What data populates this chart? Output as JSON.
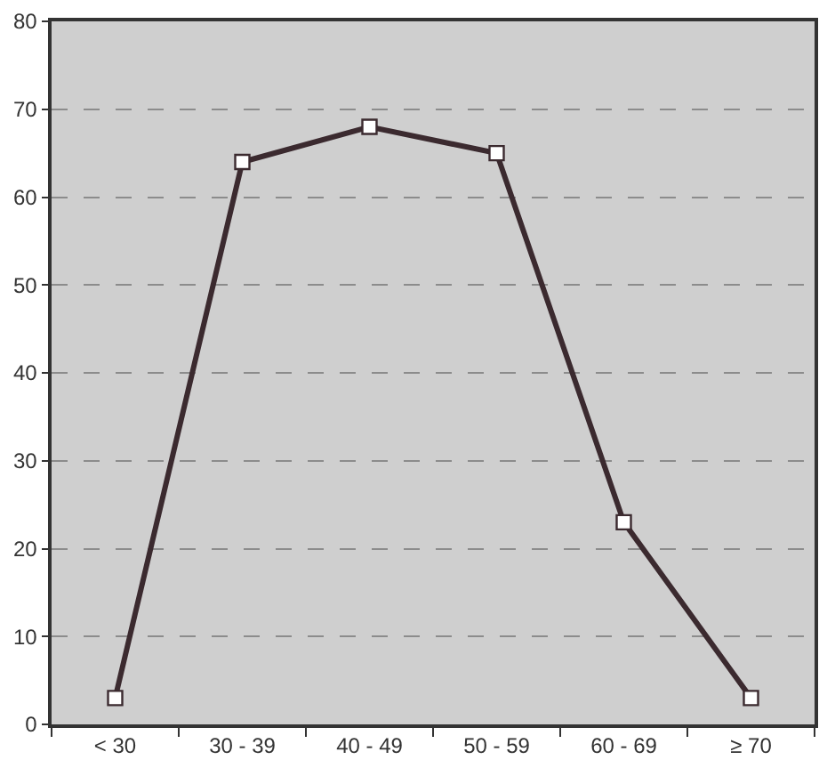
{
  "chart_data": {
    "type": "line",
    "categories": [
      "< 30",
      "30 - 39",
      "40 - 49",
      "50 - 59",
      "60 - 69",
      "≥ 70"
    ],
    "series": [
      {
        "color": "#3b2a2f",
        "values": [
          3,
          64,
          68,
          65,
          23,
          3
        ]
      }
    ],
    "ylim": [
      0,
      80
    ],
    "yticks": [
      0,
      10,
      20,
      30,
      40,
      50,
      60,
      70,
      80
    ],
    "grid": "y",
    "marker": "square",
    "line_style": "solid"
  }
}
